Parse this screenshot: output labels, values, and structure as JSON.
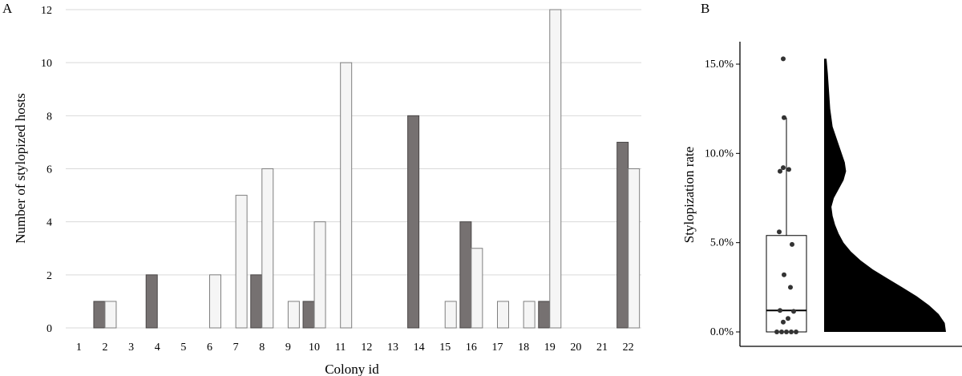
{
  "panels": {
    "a_label": "A",
    "b_label": "B"
  },
  "chart_data": [
    {
      "type": "bar",
      "panel": "A",
      "xlabel": "Colony id",
      "ylabel": "Number of stylopized hosts",
      "ylim": [
        0,
        12
      ],
      "yticks": [
        0,
        2,
        4,
        6,
        8,
        10,
        12
      ],
      "grid": true,
      "categories": [
        "1",
        "2",
        "3",
        "4",
        "5",
        "6",
        "7",
        "8",
        "9",
        "10",
        "11",
        "12",
        "13",
        "14",
        "15",
        "16",
        "17",
        "18",
        "19",
        "20",
        "21",
        "22"
      ],
      "series": [
        {
          "color": "#767171",
          "values": [
            0,
            1,
            0,
            2,
            0,
            0,
            0,
            2,
            0,
            1,
            0,
            0,
            0,
            8,
            0,
            4,
            0,
            0,
            1,
            0,
            0,
            7
          ]
        },
        {
          "color": "#f5f5f5",
          "values": [
            0,
            1,
            0,
            0,
            0,
            2,
            5,
            6,
            1,
            4,
            10,
            0,
            0,
            0,
            1,
            3,
            1,
            1,
            12,
            0,
            0,
            6
          ]
        }
      ]
    },
    {
      "type": "box",
      "panel": "B",
      "ylabel": "Stylopization rate",
      "ylim": [
        0,
        15.6
      ],
      "yticks": [
        "0.0%",
        "5.0%",
        "10.0%",
        "15.0%"
      ],
      "ytick_values": [
        0,
        5,
        10,
        15
      ],
      "grid": false,
      "box": {
        "whisker_low": 0,
        "q1": 0,
        "median": 1.2,
        "q3": 5.4,
        "whisker_high": 12.0
      },
      "points": [
        0,
        0,
        0,
        0,
        0,
        0.55,
        0.75,
        1.15,
        1.2,
        2.5,
        3.2,
        4.9,
        5.6,
        9.0,
        9.1,
        9.2,
        12.0,
        15.3
      ],
      "density": [
        [
          15.3,
          0.02
        ],
        [
          14.5,
          0.03
        ],
        [
          13.5,
          0.04
        ],
        [
          12.5,
          0.05
        ],
        [
          11.5,
          0.07
        ],
        [
          10.5,
          0.12
        ],
        [
          9.5,
          0.17
        ],
        [
          9.0,
          0.18
        ],
        [
          8.5,
          0.16
        ],
        [
          7.5,
          0.08
        ],
        [
          7.0,
          0.06
        ],
        [
          6.5,
          0.07
        ],
        [
          6.0,
          0.09
        ],
        [
          5.5,
          0.12
        ],
        [
          5.0,
          0.16
        ],
        [
          4.5,
          0.22
        ],
        [
          4.0,
          0.3
        ],
        [
          3.5,
          0.4
        ],
        [
          3.0,
          0.52
        ],
        [
          2.5,
          0.64
        ],
        [
          2.0,
          0.76
        ],
        [
          1.5,
          0.86
        ],
        [
          1.0,
          0.94
        ],
        [
          0.5,
          0.99
        ],
        [
          0.0,
          1.0
        ]
      ]
    }
  ]
}
